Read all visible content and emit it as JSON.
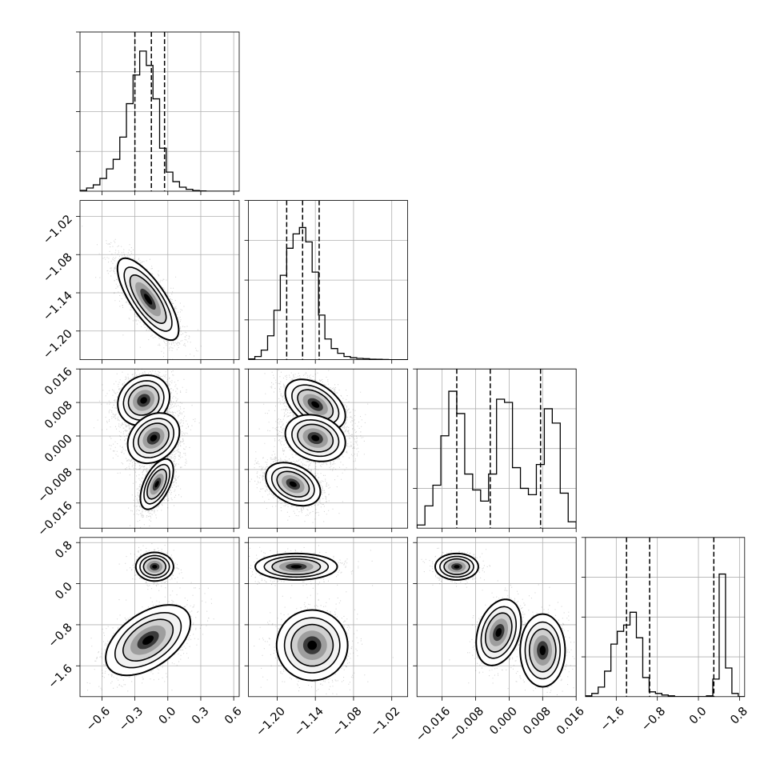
{
  "chart_data": {
    "type": "corner",
    "grid": true,
    "quantiles_marked": "dashed vertical lines at 16/50/84 percentiles",
    "params": [
      {
        "range": [
          -0.8,
          0.65
        ],
        "ticks": [
          -0.6,
          -0.3,
          0.0,
          0.3,
          0.6
        ],
        "tick_labels": [
          "−0.6",
          "−0.3",
          "0.0",
          "0.3",
          "0.6"
        ],
        "quantiles": [
          -0.3,
          -0.15,
          -0.03
        ],
        "hist": [
          0.005,
          0.02,
          0.04,
          0.08,
          0.14,
          0.2,
          0.34,
          0.55,
          0.73,
          0.88,
          0.79,
          0.58,
          0.27,
          0.12,
          0.06,
          0.025,
          0.012,
          0.004,
          0.002,
          0,
          0,
          0,
          0,
          0
        ]
      },
      {
        "range": [
          -1.245,
          -0.995
        ],
        "ticks": [
          -1.2,
          -1.14,
          -1.08,
          -1.02
        ],
        "tick_labels": [
          "−1.20",
          "−1.14",
          "−1.08",
          "−1.02"
        ],
        "quantiles": [
          -1.185,
          -1.16,
          -1.134
        ],
        "hist": [
          0.005,
          0.02,
          0.06,
          0.15,
          0.31,
          0.53,
          0.7,
          0.79,
          0.83,
          0.74,
          0.55,
          0.28,
          0.13,
          0.07,
          0.04,
          0.02,
          0.012,
          0.008,
          0.006,
          0.003,
          0.002,
          0.001,
          0,
          0,
          0
        ]
      },
      {
        "range": [
          -0.022,
          0.016
        ],
        "ticks": [
          -0.016,
          -0.008,
          0.0,
          0.008,
          0.016
        ],
        "tick_labels": [
          "−0.016",
          "−0.008",
          "0.000",
          "0.008",
          "0.016"
        ],
        "quantiles": [
          -0.0125,
          -0.0045,
          0.0075
        ],
        "hist": [
          0.02,
          0.14,
          0.27,
          0.58,
          0.86,
          0.72,
          0.34,
          0.24,
          0.17,
          0.34,
          0.81,
          0.79,
          0.38,
          0.25,
          0.21,
          0.4,
          0.75,
          0.66,
          0.22,
          0.04
        ]
      },
      {
        "range": [
          -2.2,
          0.9
        ],
        "ticks": [
          -1.6,
          -0.8,
          0.0,
          0.8
        ],
        "tick_labels": [
          "−1.6",
          "−0.8",
          "0.0",
          "0.8"
        ],
        "quantiles": [
          -1.4,
          -0.95,
          0.3
        ],
        "hist": [
          0.005,
          0.02,
          0.06,
          0.16,
          0.33,
          0.41,
          0.45,
          0.53,
          0.37,
          0.12,
          0.03,
          0.02,
          0.01,
          0.005,
          0,
          0,
          0,
          0,
          0,
          0.005,
          0.11,
          0.77,
          0.18,
          0.02,
          0
        ]
      }
    ],
    "pair_clusters": {
      "1_0": [
        {
          "mean": [
            -0.18,
            -1.15
          ],
          "sd": [
            0.13,
            0.03
          ],
          "rho": -0.75,
          "w": 1
        }
      ],
      "2_0": [
        {
          "mean": [
            -0.22,
            0.0085
          ],
          "sd": [
            0.11,
            0.0028
          ],
          "rho": 0.15,
          "w": 1
        },
        {
          "mean": [
            -0.13,
            -0.0005
          ],
          "sd": [
            0.11,
            0.0028
          ],
          "rho": 0.25,
          "w": 1
        },
        {
          "mean": [
            -0.1,
            -0.0115
          ],
          "sd": [
            0.07,
            0.0028
          ],
          "rho": 0.55,
          "w": 1
        }
      ],
      "2_1": [
        {
          "mean": [
            -1.14,
            0.0075
          ],
          "sd": [
            0.022,
            0.0028
          ],
          "rho": -0.45,
          "w": 1
        },
        {
          "mean": [
            -1.14,
            -0.0005
          ],
          "sd": [
            0.022,
            0.0026
          ],
          "rho": -0.2,
          "w": 1
        },
        {
          "mean": [
            -1.175,
            -0.0115
          ],
          "sd": [
            0.02,
            0.0024
          ],
          "rho": -0.35,
          "w": 1
        }
      ],
      "3_0": [
        {
          "mean": [
            -0.12,
            0.33
          ],
          "sd": [
            0.08,
            0.13
          ],
          "rho": 0.0,
          "w": 0.35
        },
        {
          "mean": [
            -0.18,
            -1.1
          ],
          "sd": [
            0.18,
            0.32
          ],
          "rho": 0.5,
          "w": 0.65
        }
      ],
      "3_1": [
        {
          "mean": [
            -1.17,
            0.33
          ],
          "sd": [
            0.03,
            0.12
          ],
          "rho": 0.0,
          "w": 0.35
        },
        {
          "mean": [
            -1.145,
            -1.2
          ],
          "sd": [
            0.026,
            0.32
          ],
          "rho": 0.0,
          "w": 0.65
        }
      ],
      "3_2": [
        {
          "mean": [
            -0.0125,
            0.33
          ],
          "sd": [
            0.0024,
            0.12
          ],
          "rho": 0.0,
          "w": 0.35
        },
        {
          "mean": [
            -0.0025,
            -0.95
          ],
          "sd": [
            0.0025,
            0.3
          ],
          "rho": 0.3,
          "w": 0.33
        },
        {
          "mean": [
            0.008,
            -1.3
          ],
          "sd": [
            0.0025,
            0.33
          ],
          "rho": 0.0,
          "w": 0.32
        }
      ]
    }
  }
}
